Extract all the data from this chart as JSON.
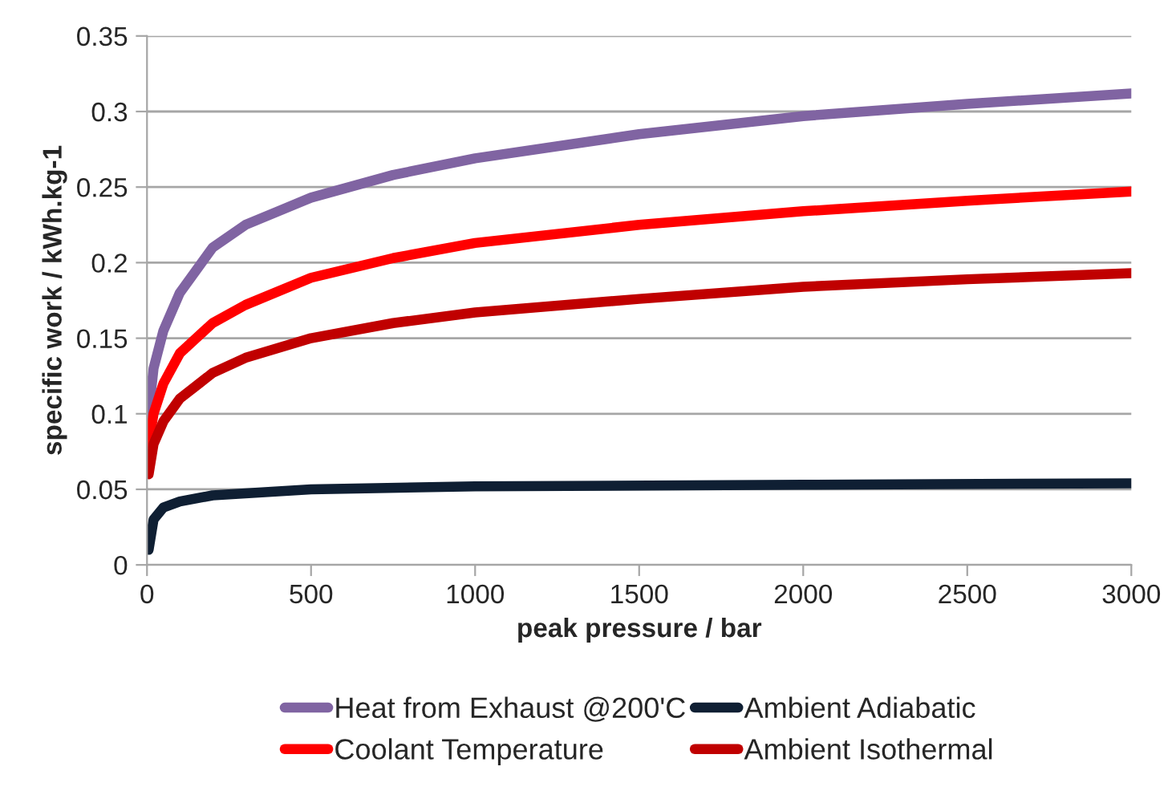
{
  "chart_data": {
    "type": "line",
    "xlabel": "peak pressure / bar",
    "ylabel": "specific work / kWh.kg-1",
    "xlim": [
      0,
      3000
    ],
    "xticks": [
      0,
      500,
      1000,
      1500,
      2000,
      2500,
      3000
    ],
    "ylim": [
      0,
      0.35
    ],
    "yticks": [
      0,
      0.05,
      0.1,
      0.15,
      0.2,
      0.25,
      0.3,
      0.35
    ],
    "grid": "y",
    "legend": "bottom",
    "marker": "none",
    "line_style": "solid",
    "series": [
      {
        "name": "Heat from Exhaust @200'C",
        "color": "#8064a2",
        "x": [
          5,
          20,
          50,
          100,
          200,
          300,
          500,
          750,
          1000,
          1500,
          2000,
          2500,
          3000
        ],
        "values": [
          0.1,
          0.13,
          0.155,
          0.18,
          0.21,
          0.225,
          0.243,
          0.258,
          0.269,
          0.285,
          0.297,
          0.305,
          0.312
        ]
      },
      {
        "name": "Coolant Temperature",
        "color": "#ff0000",
        "x": [
          5,
          20,
          50,
          100,
          200,
          300,
          500,
          750,
          1000,
          1500,
          2000,
          2500,
          3000
        ],
        "values": [
          0.08,
          0.1,
          0.12,
          0.14,
          0.16,
          0.172,
          0.19,
          0.203,
          0.213,
          0.225,
          0.234,
          0.241,
          0.247
        ]
      },
      {
        "name": "Ambient Adiabatic",
        "color": "#0f1f33",
        "x": [
          5,
          20,
          50,
          100,
          200,
          500,
          1000,
          2000,
          3000
        ],
        "values": [
          0.01,
          0.03,
          0.038,
          0.042,
          0.046,
          0.05,
          0.052,
          0.053,
          0.054
        ]
      },
      {
        "name": "Ambient Isothermal",
        "color": "#c00000",
        "x": [
          5,
          20,
          50,
          100,
          200,
          300,
          500,
          750,
          1000,
          1500,
          2000,
          2500,
          3000
        ],
        "values": [
          0.06,
          0.08,
          0.095,
          0.11,
          0.127,
          0.137,
          0.15,
          0.16,
          0.167,
          0.176,
          0.184,
          0.189,
          0.193
        ]
      }
    ]
  }
}
